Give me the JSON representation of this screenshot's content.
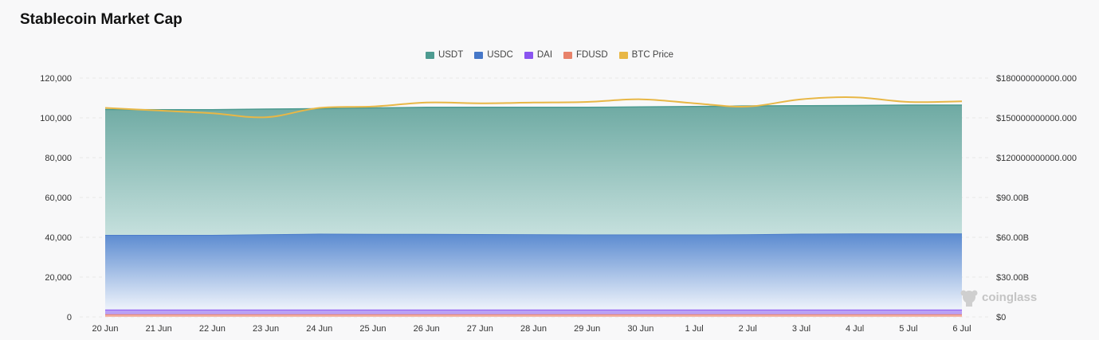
{
  "page": {
    "title": "Stablecoin Market Cap",
    "watermark": "coinglass"
  },
  "colors": {
    "USDT": "#4d9b91",
    "USDC": "#4677c8",
    "DAI": "#8a55f0",
    "FDUSD": "#e8826a",
    "BTC Price": "#e8b746"
  },
  "chart_data": {
    "type": "area",
    "title": "Stablecoin Market Cap",
    "categories": [
      "20 Jun",
      "21 Jun",
      "22 Jun",
      "23 Jun",
      "24 Jun",
      "25 Jun",
      "26 Jun",
      "27 Jun",
      "28 Jun",
      "29 Jun",
      "30 Jun",
      "1 Jul",
      "2 Jul",
      "3 Jul",
      "4 Jul",
      "5 Jul",
      "6 Jul"
    ],
    "y_left": {
      "ylim": [
        0,
        120000
      ],
      "ticks": [
        0,
        20000,
        40000,
        60000,
        80000,
        100000,
        120000
      ],
      "tick_labels": [
        "0",
        "20,000",
        "40,000",
        "60,000",
        "80,000",
        "100,000",
        "120,000"
      ]
    },
    "y_right": {
      "ylim": [
        0,
        180000000000
      ],
      "ticks": [
        0,
        30000000000,
        60000000000,
        90000000000,
        120000000000,
        150000000000,
        180000000000
      ],
      "tick_labels": [
        "$0",
        "$30.00B",
        "$60.00B",
        "$90.00B",
        "$120000000000.000",
        "$150000000000.000",
        "$180000000000.000"
      ]
    },
    "stacked": true,
    "series": [
      {
        "name": "FDUSD",
        "axis": "left",
        "values": [
          1300,
          1300,
          1300,
          1300,
          1300,
          1300,
          1300,
          1300,
          1300,
          1300,
          1300,
          1300,
          1300,
          1300,
          1300,
          1300,
          1300
        ]
      },
      {
        "name": "DAI",
        "axis": "left",
        "values": [
          2400,
          2400,
          2400,
          2400,
          2400,
          2400,
          2400,
          2400,
          2400,
          2400,
          2400,
          2400,
          2400,
          2400,
          2400,
          2400,
          2400
        ]
      },
      {
        "name": "USDC",
        "axis": "left",
        "values": [
          37500,
          37500,
          37500,
          37800,
          38100,
          38000,
          38000,
          37900,
          37800,
          37700,
          37700,
          37700,
          37800,
          38100,
          38200,
          38200,
          38200
        ]
      },
      {
        "name": "USDT",
        "axis": "left",
        "values": [
          63000,
          62900,
          62900,
          62900,
          62800,
          63300,
          63600,
          63700,
          63800,
          63900,
          64100,
          64300,
          64500,
          64300,
          64300,
          64500,
          64500
        ]
      },
      {
        "name": "BTC Price",
        "axis": "right",
        "type": "line",
        "values": [
          157500000000,
          155500000000,
          153500000000,
          150500000000,
          157500000000,
          158500000000,
          161500000000,
          161000000000,
          161500000000,
          162000000000,
          164000000000,
          161000000000,
          158500000000,
          164000000000,
          165500000000,
          162000000000,
          162500000000
        ]
      }
    ],
    "legend_order": [
      "USDT",
      "USDC",
      "DAI",
      "FDUSD",
      "BTC Price"
    ],
    "legend_position": "top-center",
    "grid": true
  }
}
